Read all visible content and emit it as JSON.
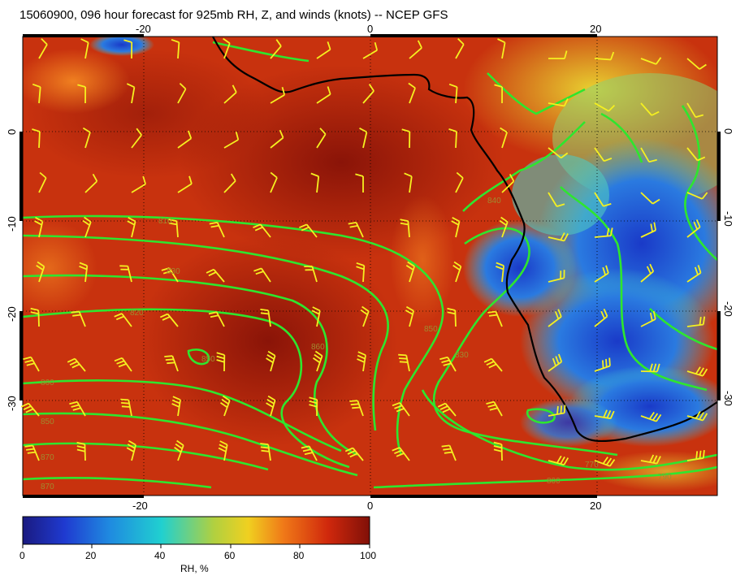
{
  "title": "15060900, 096 hour forecast for 925mb RH, Z, and winds (knots) -- NCEP GFS",
  "map": {
    "lon_ticks": [
      "-20",
      "0",
      "20"
    ],
    "lat_ticks": [
      "0",
      "-10",
      "-20",
      "-30"
    ],
    "contour_labels": [
      "810",
      "830",
      "820",
      "850",
      "860",
      "850",
      "870",
      "870",
      "860",
      "850",
      "840",
      "830",
      "800",
      "770",
      "790"
    ],
    "colors": {
      "coast": "#000000",
      "contour": "#2ee62e",
      "barb": "#f5f020",
      "rh_high": "#b0200c",
      "rh_low": "#2030c8"
    }
  },
  "colorbar": {
    "ticks": [
      "0",
      "20",
      "40",
      "60",
      "80",
      "100"
    ],
    "label": "RH, %"
  }
}
